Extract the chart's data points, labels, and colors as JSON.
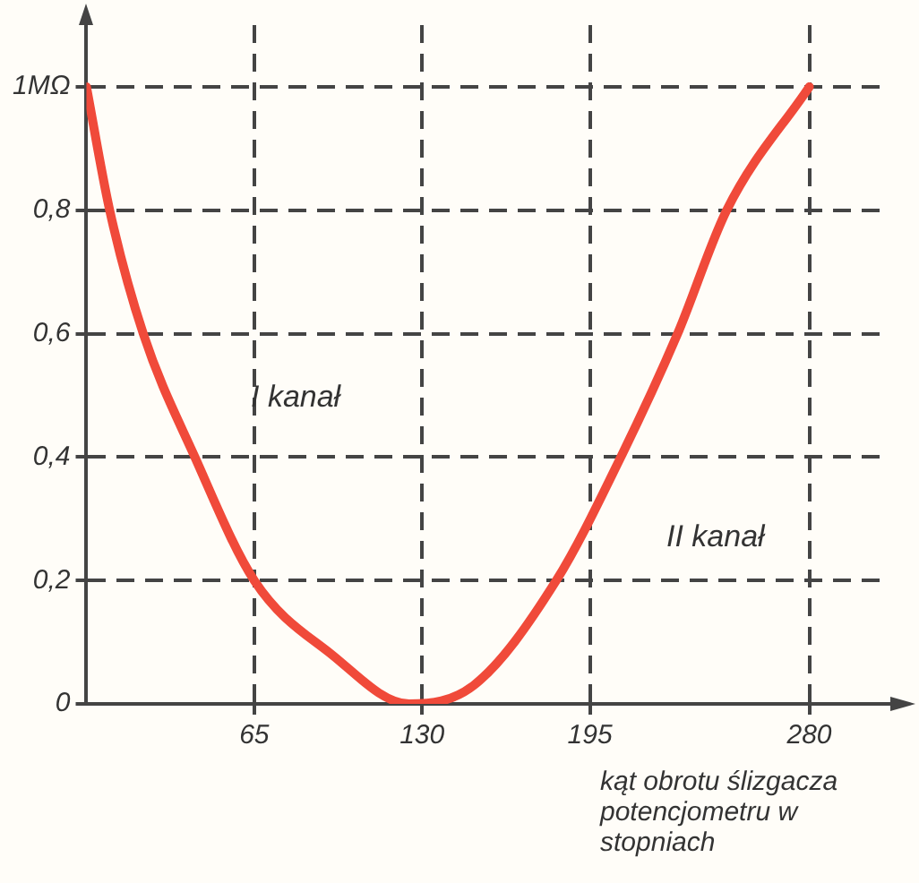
{
  "chart_data": {
    "type": "line",
    "xlabel": "kąt obrotu ślizgacza potencjometru w stopniach",
    "x": [
      0,
      9,
      22,
      42,
      65,
      95,
      125,
      150,
      182,
      207,
      229,
      248,
      280
    ],
    "series": [
      {
        "color": "#f04a3a",
        "values": [
          1.0,
          0.8,
          0.6,
          0.4,
          0.2,
          0.08,
          0,
          0.03,
          0.2,
          0.4,
          0.6,
          0.8,
          1.0
        ]
      }
    ],
    "xlim": [
      0,
      310
    ],
    "xticks": [
      65,
      130,
      195,
      280
    ],
    "ylim": [
      0,
      1.1
    ],
    "yticks": [
      {
        "value": 0,
        "label": "0"
      },
      {
        "value": 0.2,
        "label": "0,2"
      },
      {
        "value": 0.4,
        "label": "0,4"
      },
      {
        "value": 0.6,
        "label": "0,6"
      },
      {
        "value": 0.8,
        "label": "0,8"
      },
      {
        "value": 1,
        "label": "1MΩ"
      }
    ],
    "annotations": [
      "I kanał",
      "II kanał"
    ],
    "grid": true,
    "legend": false,
    "marker": "none",
    "line_style": "solid"
  }
}
